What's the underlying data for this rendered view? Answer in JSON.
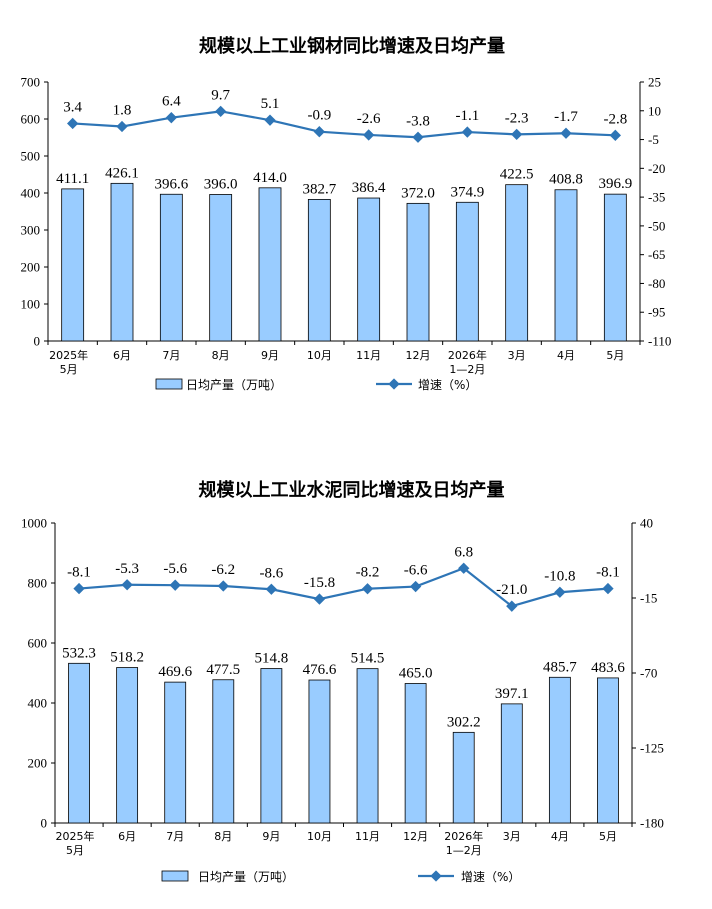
{
  "chart_data": [
    {
      "type": "bar",
      "title": "规模以上工业钢材同比增速及日均产量",
      "categories": [
        [
          "2025年",
          "5月"
        ],
        [
          "6月"
        ],
        [
          "7月"
        ],
        [
          "8月"
        ],
        [
          "9月"
        ],
        [
          "10月"
        ],
        [
          "11月"
        ],
        [
          "12月"
        ],
        [
          "2026年",
          "1—2月"
        ],
        [
          "3月"
        ],
        [
          "4月"
        ],
        [
          "5月"
        ]
      ],
      "ylim": [
        0,
        700
      ],
      "yticks": [
        0,
        100,
        200,
        300,
        400,
        500,
        600,
        700
      ],
      "y2lim": [
        -110,
        25
      ],
      "y2ticks": [
        25,
        10,
        -5,
        -20,
        -35,
        -50,
        -65,
        -80,
        -95,
        -110
      ],
      "bar_label": "日均产量（万吨）",
      "line_label": "增速（%）",
      "bar_values": [
        411.1,
        426.1,
        396.6,
        396.0,
        414.0,
        382.7,
        386.4,
        372.0,
        374.9,
        422.5,
        408.8,
        396.9
      ],
      "bar_value_labels": [
        "411.1",
        "426.1",
        "396.6",
        "396.0",
        "414.0",
        "382.7",
        "386.4",
        "372.0",
        "374.9",
        "422.5",
        "408.8",
        "396.9"
      ],
      "line_values": [
        3.4,
        1.8,
        6.4,
        9.7,
        5.1,
        -0.9,
        -2.6,
        -3.8,
        -1.1,
        -2.3,
        -1.7,
        -2.8
      ],
      "line_value_labels": [
        "3.4",
        "1.8",
        "6.4",
        "9.7",
        "5.1",
        "-0.9",
        "-2.6",
        "-3.8",
        "-1.1",
        "-2.3",
        "-1.7",
        "-2.8"
      ],
      "bar_color": "#99ccff",
      "line_color": "#2e75b6",
      "grid": false
    },
    {
      "type": "bar",
      "title": "规模以上工业水泥同比增速及日均产量",
      "categories": [
        [
          "2025年",
          "5月"
        ],
        [
          "6月"
        ],
        [
          "7月"
        ],
        [
          "8月"
        ],
        [
          "9月"
        ],
        [
          "10月"
        ],
        [
          "11月"
        ],
        [
          "12月"
        ],
        [
          "2026年",
          "1—2月"
        ],
        [
          "3月"
        ],
        [
          "4月"
        ],
        [
          "5月"
        ]
      ],
      "ylim": [
        0,
        1000
      ],
      "yticks": [
        0,
        200,
        400,
        600,
        800,
        1000
      ],
      "y2lim": [
        -180,
        40
      ],
      "y2ticks": [
        40,
        -15,
        -70,
        -125,
        -180
      ],
      "bar_label": "日均产量（万吨）",
      "line_label": "增速（%）",
      "bar_values": [
        532.3,
        518.2,
        469.6,
        477.5,
        514.8,
        476.6,
        514.5,
        465.0,
        302.2,
        397.1,
        485.7,
        483.6
      ],
      "bar_value_labels": [
        "532.3",
        "518.2",
        "469.6",
        "477.5",
        "514.8",
        "476.6",
        "514.5",
        "465.0",
        "302.2",
        "397.1",
        "485.7",
        "483.6"
      ],
      "line_values": [
        -8.1,
        -5.3,
        -5.6,
        -6.2,
        -8.6,
        -15.8,
        -8.2,
        -6.6,
        6.8,
        -21.0,
        -10.8,
        -8.1
      ],
      "line_value_labels": [
        "-8.1",
        "-5.3",
        "-5.6",
        "-6.2",
        "-8.6",
        "-15.8",
        "-8.2",
        "-6.6",
        "6.8",
        "-21.0",
        "-10.8",
        "-8.1"
      ],
      "bar_color": "#99ccff",
      "line_color": "#2e75b6",
      "grid": false
    }
  ]
}
